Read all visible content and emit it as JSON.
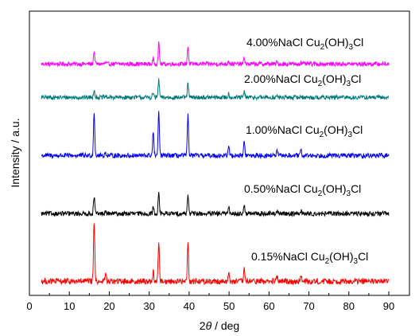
{
  "chart_data": {
    "type": "line",
    "xlabel": "2θ / deg",
    "xlabel_parts": [
      "2",
      "θ",
      " / deg"
    ],
    "ylabel": "Intensity / a.u.",
    "xlim": [
      0,
      90
    ],
    "x_ticks": [
      "0",
      "10",
      "20",
      "30",
      "40",
      "50",
      "60",
      "70",
      "80",
      "90"
    ],
    "y_ticks_labeled": false,
    "grid": false,
    "x_range": [
      3,
      90
    ],
    "peak_positions": [
      16.2,
      19.1,
      31.0,
      32.4,
      39.7,
      49.9,
      53.8,
      62.0,
      68.0
    ],
    "series": [
      {
        "name": "4.00%NaCl Cu2(OH)3Cl",
        "label_parts": [
          "4.00%NaCl Cu",
          "2",
          "(OH)",
          "3",
          "Cl"
        ],
        "color": "#ff00ff",
        "baseline": 0.95,
        "noise": 0.55,
        "peaks": [
          3.3,
          0.3,
          1.2,
          5.3,
          4.5,
          1.0,
          1.6,
          0.4,
          0.4
        ]
      },
      {
        "name": "2.00%NaCl Cu2(OH)3Cl",
        "label_parts": [
          "2.00%NaCl Cu",
          "2",
          "(OH)",
          "3",
          "Cl"
        ],
        "color": "#007a7a",
        "baseline": 0.95,
        "noise": 0.55,
        "peaks": [
          2.1,
          0.3,
          1.2,
          4.6,
          3.6,
          1.0,
          1.4,
          0.4,
          0.4
        ]
      },
      {
        "name": "1.00%NaCl Cu2(OH)3Cl",
        "label_parts": [
          "1.00%NaCl Cu",
          "2",
          "(OH)",
          "3",
          "Cl"
        ],
        "color": "#0000ff",
        "baseline": 0.95,
        "noise": 0.6,
        "peaks": [
          11.3,
          0.7,
          6.0,
          11.2,
          10.2,
          2.5,
          3.6,
          1.0,
          1.2
        ]
      },
      {
        "name": "0.50%NaCl Cu2(OH)3Cl",
        "label_parts": [
          "0.50%NaCl Cu",
          "2",
          "(OH)",
          "3",
          "Cl"
        ],
        "color": "#000000",
        "baseline": 0.95,
        "noise": 0.6,
        "peaks": [
          4.5,
          0.5,
          1.6,
          5.5,
          5.1,
          2.0,
          2.4,
          0.8,
          0.8
        ]
      },
      {
        "name": "0.15%NaCl Cu2(OH)3Cl",
        "label_parts": [
          "0.15%NaCl Cu",
          "2",
          "(OH)",
          "3",
          "Cl"
        ],
        "color": "#ff0000",
        "baseline": 0.95,
        "noise": 0.75,
        "peaks": [
          15.5,
          2.0,
          2.5,
          10.0,
          9.8,
          2.0,
          3.0,
          1.2,
          1.2
        ]
      }
    ]
  }
}
